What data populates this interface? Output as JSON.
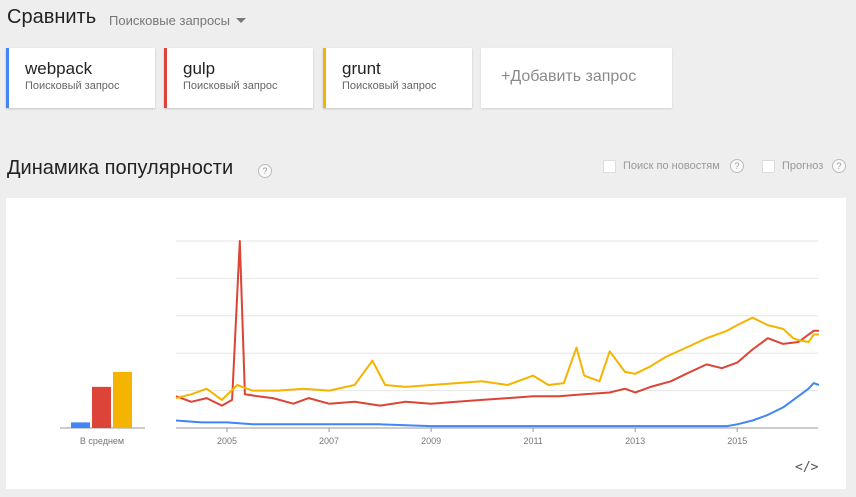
{
  "header": {
    "title": "Сравнить",
    "dropdown": "Поисковые запросы"
  },
  "terms": [
    {
      "name": "webpack",
      "type": "Поисковый запрос",
      "color": "#4285f4"
    },
    {
      "name": "gulp",
      "type": "Поисковый запрос",
      "color": "#db4437"
    },
    {
      "name": "grunt",
      "type": "Поисковый запрос",
      "color": "#f4b400"
    }
  ],
  "add_query": "+Добавить запрос",
  "section": {
    "title": "Динамика популярности",
    "help": "?",
    "options": [
      {
        "label": "Поиск по новостям",
        "checked": false
      },
      {
        "label": "Прогноз",
        "checked": false
      }
    ]
  },
  "embed_label": "</>",
  "chart_data": {
    "type": "line",
    "title": "",
    "ylim": [
      0,
      100
    ],
    "grid": true,
    "average_label": "В среднем",
    "averages": [
      {
        "name": "webpack",
        "value": 3,
        "color": "#4285f4"
      },
      {
        "name": "gulp",
        "value": 22,
        "color": "#db4437"
      },
      {
        "name": "grunt",
        "value": 30,
        "color": "#f4b400"
      }
    ],
    "x_ticks": [
      "2005",
      "2007",
      "2009",
      "2011",
      "2013",
      "2015"
    ],
    "x_range": [
      "2004-01",
      "2016-08"
    ],
    "series": [
      {
        "name": "webpack",
        "color": "#4285f4",
        "points": [
          [
            2004.0,
            4
          ],
          [
            2004.5,
            3
          ],
          [
            2005.0,
            3
          ],
          [
            2005.5,
            2
          ],
          [
            2006.0,
            2
          ],
          [
            2006.5,
            2
          ],
          [
            2007.0,
            2
          ],
          [
            2007.5,
            2
          ],
          [
            2008.0,
            2
          ],
          [
            2009.0,
            1
          ],
          [
            2010.0,
            1
          ],
          [
            2011.0,
            1
          ],
          [
            2012.0,
            1
          ],
          [
            2013.0,
            1
          ],
          [
            2014.0,
            1
          ],
          [
            2014.8,
            1
          ],
          [
            2015.0,
            2
          ],
          [
            2015.3,
            4
          ],
          [
            2015.6,
            7
          ],
          [
            2015.9,
            11
          ],
          [
            2016.2,
            17
          ],
          [
            2016.4,
            21
          ],
          [
            2016.5,
            24
          ],
          [
            2016.6,
            23
          ]
        ]
      },
      {
        "name": "gulp",
        "color": "#db4437",
        "points": [
          [
            2004.0,
            17
          ],
          [
            2004.3,
            14
          ],
          [
            2004.6,
            16
          ],
          [
            2004.9,
            12
          ],
          [
            2005.1,
            15
          ],
          [
            2005.25,
            100
          ],
          [
            2005.35,
            18
          ],
          [
            2005.6,
            17
          ],
          [
            2005.9,
            16
          ],
          [
            2006.3,
            13
          ],
          [
            2006.6,
            16
          ],
          [
            2007.0,
            13
          ],
          [
            2007.5,
            14
          ],
          [
            2008.0,
            12
          ],
          [
            2008.5,
            14
          ],
          [
            2009.0,
            13
          ],
          [
            2009.5,
            14
          ],
          [
            2010.0,
            15
          ],
          [
            2010.5,
            16
          ],
          [
            2011.0,
            17
          ],
          [
            2011.5,
            17
          ],
          [
            2012.0,
            18
          ],
          [
            2012.5,
            19
          ],
          [
            2012.8,
            21
          ],
          [
            2013.0,
            19
          ],
          [
            2013.3,
            22
          ],
          [
            2013.7,
            25
          ],
          [
            2014.0,
            29
          ],
          [
            2014.4,
            34
          ],
          [
            2014.7,
            32
          ],
          [
            2015.0,
            35
          ],
          [
            2015.3,
            42
          ],
          [
            2015.6,
            48
          ],
          [
            2015.9,
            45
          ],
          [
            2016.2,
            46
          ],
          [
            2016.5,
            52
          ],
          [
            2016.6,
            52
          ]
        ]
      },
      {
        "name": "grunt",
        "color": "#f4b400",
        "points": [
          [
            2004.0,
            16
          ],
          [
            2004.3,
            18
          ],
          [
            2004.6,
            21
          ],
          [
            2004.9,
            15
          ],
          [
            2005.2,
            23
          ],
          [
            2005.5,
            20
          ],
          [
            2006.0,
            20
          ],
          [
            2006.5,
            21
          ],
          [
            2007.0,
            20
          ],
          [
            2007.5,
            23
          ],
          [
            2007.85,
            36
          ],
          [
            2008.1,
            23
          ],
          [
            2008.5,
            22
          ],
          [
            2009.0,
            23
          ],
          [
            2009.5,
            24
          ],
          [
            2010.0,
            25
          ],
          [
            2010.5,
            23
          ],
          [
            2011.0,
            28
          ],
          [
            2011.3,
            23
          ],
          [
            2011.6,
            24
          ],
          [
            2011.85,
            43
          ],
          [
            2012.0,
            28
          ],
          [
            2012.3,
            25
          ],
          [
            2012.5,
            41
          ],
          [
            2012.8,
            30
          ],
          [
            2013.0,
            29
          ],
          [
            2013.3,
            33
          ],
          [
            2013.6,
            38
          ],
          [
            2014.0,
            43
          ],
          [
            2014.4,
            48
          ],
          [
            2014.8,
            52
          ],
          [
            2015.0,
            55
          ],
          [
            2015.3,
            59
          ],
          [
            2015.6,
            55
          ],
          [
            2015.9,
            53
          ],
          [
            2016.1,
            48
          ],
          [
            2016.2,
            47
          ],
          [
            2016.4,
            46
          ],
          [
            2016.5,
            50
          ],
          [
            2016.6,
            50
          ]
        ]
      }
    ]
  }
}
